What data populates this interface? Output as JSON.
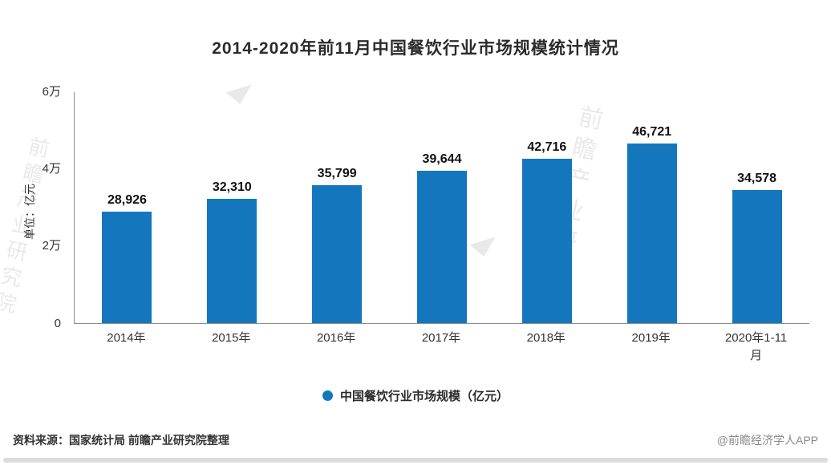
{
  "title": "2014-2020年前11月中国餐饮行业市场规模统计情况",
  "watermark": "前瞻产业研究院",
  "chart_data": {
    "type": "bar",
    "categories": [
      "2014年",
      "2015年",
      "2016年",
      "2017年",
      "2018年",
      "2019年",
      "2020年1-11月"
    ],
    "values": [
      28926,
      32310,
      35799,
      39644,
      42716,
      46721,
      34578
    ],
    "value_labels": [
      "28,926",
      "32,310",
      "35,799",
      "39,644",
      "42,716",
      "46,721",
      "34,578"
    ],
    "title": "2014-2020年前11月中国餐饮行业市场规模统计情况",
    "xlabel": "",
    "ylabel": "单位：亿元",
    "ylim": [
      0,
      60000
    ],
    "yticks": [
      "0",
      "2万",
      "4万",
      "6万"
    ],
    "grid": "off",
    "bar_color": "#1477BE",
    "legend": [
      {
        "label": "中国餐饮行业市场规模（亿元）",
        "color": "#1477BE"
      }
    ],
    "legend_position": "bottom-center"
  },
  "footer": {
    "source": "资料来源：国家统计局 前瞻产业研究院整理",
    "credit": "@前瞻经济学人APP"
  }
}
